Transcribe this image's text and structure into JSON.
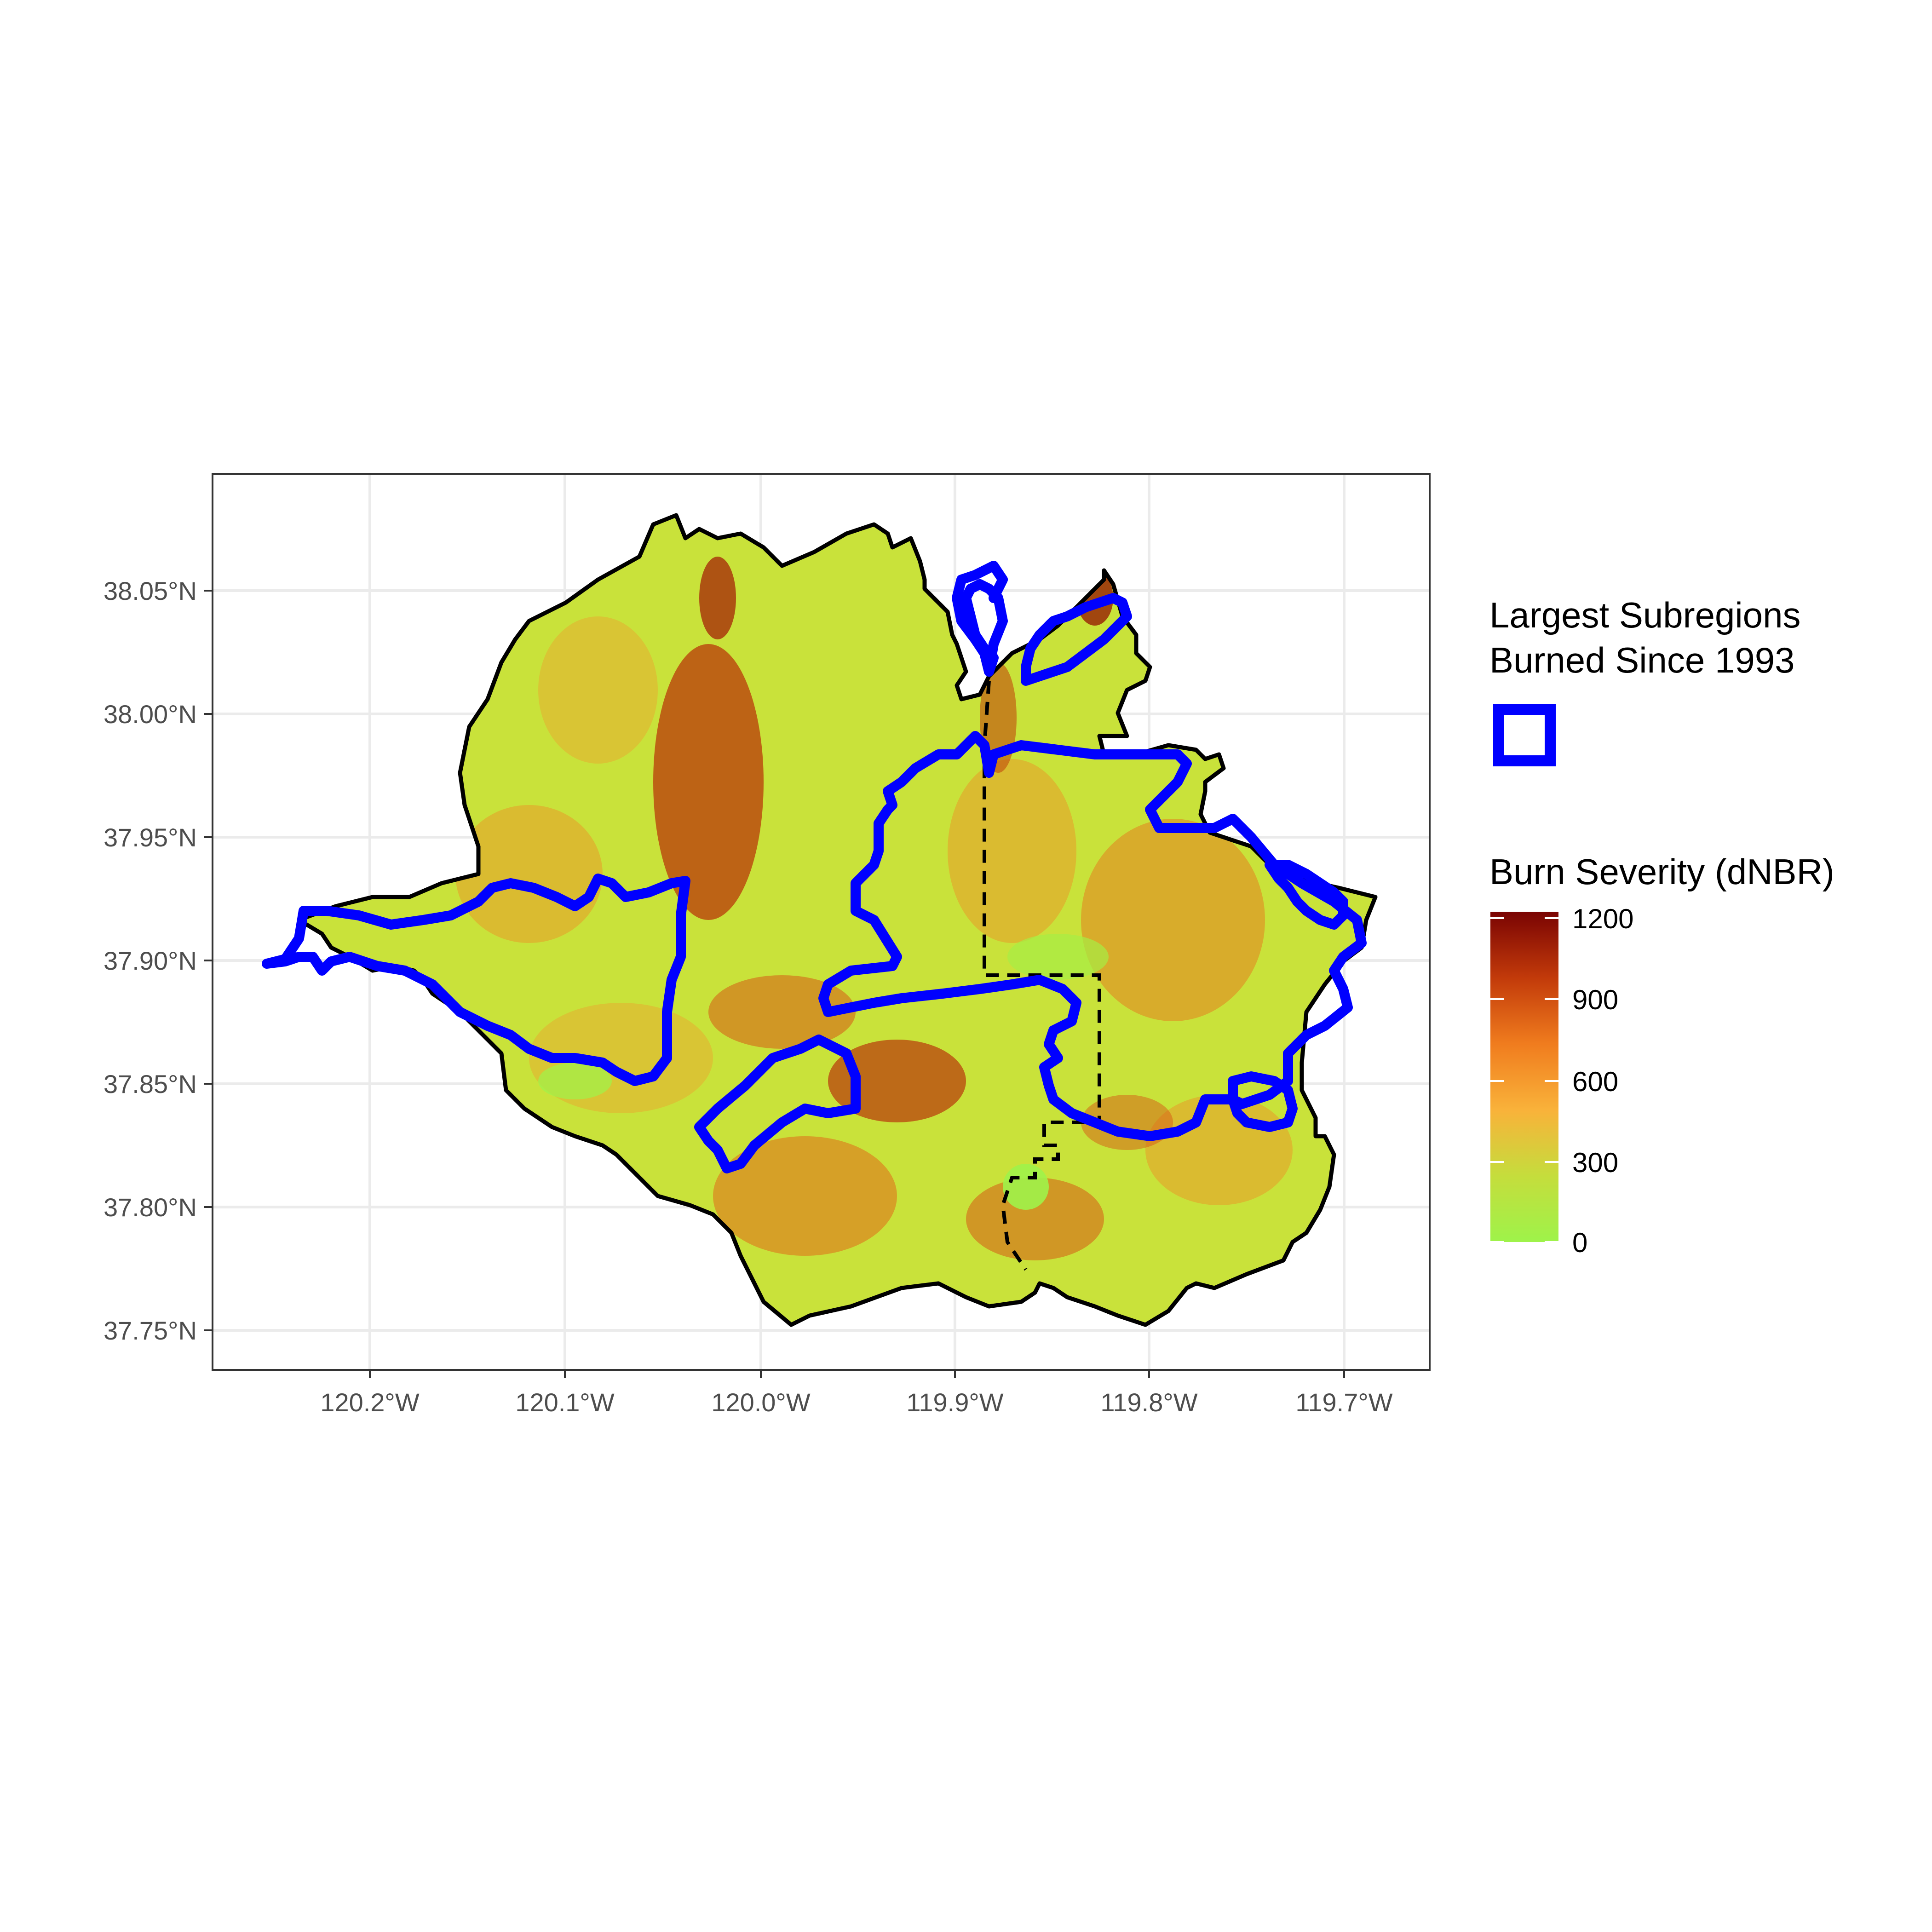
{
  "map": {
    "x_ticks": [
      "120.2°W",
      "120.1°W",
      "120.0°W",
      "119.9°W",
      "119.8°W",
      "119.7°W"
    ],
    "y_ticks": [
      "38.05°N",
      "38.00°N",
      "37.95°N",
      "37.90°N",
      "37.85°N",
      "37.80°N",
      "37.75°N"
    ],
    "fire_fill": "#c9e23a",
    "severity_patch_color": "#c24a0c",
    "boundary_color": "#000000",
    "subregion_color": "#0000ff"
  },
  "legend": {
    "subregions": {
      "title_line1": "Largest Subregions",
      "title_line2": "Burned Since 1993",
      "color": "#0000ff"
    },
    "severity": {
      "title": "Burn Severity (dNBR)",
      "labels": [
        "1200",
        "900",
        "600",
        "300",
        "0"
      ],
      "range": [
        0,
        1200
      ],
      "colors": [
        "#7a0403",
        "#c23a0a",
        "#f07c1e",
        "#f9b23a",
        "#c5dd3c",
        "#9ef34a"
      ]
    }
  }
}
